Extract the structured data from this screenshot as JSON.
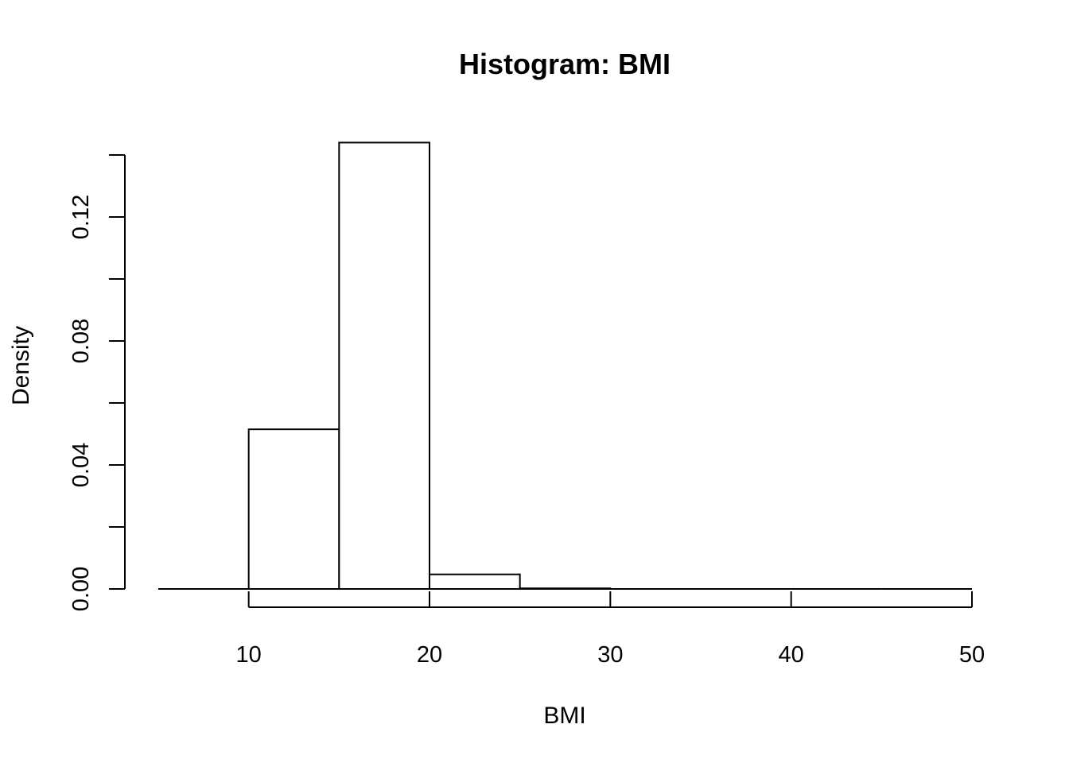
{
  "chart_data": {
    "type": "bar",
    "title": "Histogram: BMI",
    "xlabel": "BMI",
    "ylabel": "Density",
    "bins": [
      {
        "start": 5,
        "end": 10,
        "density": 0.0
      },
      {
        "start": 10,
        "end": 15,
        "density": 0.0515
      },
      {
        "start": 15,
        "end": 20,
        "density": 0.144
      },
      {
        "start": 20,
        "end": 25,
        "density": 0.0047
      },
      {
        "start": 25,
        "end": 30,
        "density": 0.0002
      },
      {
        "start": 30,
        "end": 35,
        "density": 0.0
      },
      {
        "start": 35,
        "end": 40,
        "density": 0.0
      },
      {
        "start": 40,
        "end": 45,
        "density": 0.0
      },
      {
        "start": 45,
        "end": 50,
        "density": 0.0
      }
    ],
    "xlim": [
      5,
      50
    ],
    "ylim": [
      0,
      0.14
    ],
    "x_ticks": [
      10,
      20,
      30,
      40,
      50
    ],
    "x_tick_labels": [
      "10",
      "20",
      "30",
      "40",
      "50"
    ],
    "y_ticks": [
      0,
      0.02,
      0.04,
      0.06,
      0.08,
      0.1,
      0.12,
      0.14
    ],
    "y_tick_labels": [
      "0.00",
      "",
      "0.04",
      "",
      "0.08",
      "",
      "0.12",
      ""
    ],
    "grid": false,
    "legend": "none",
    "bar_fill": "#ffffff",
    "bar_stroke": "#000000"
  }
}
